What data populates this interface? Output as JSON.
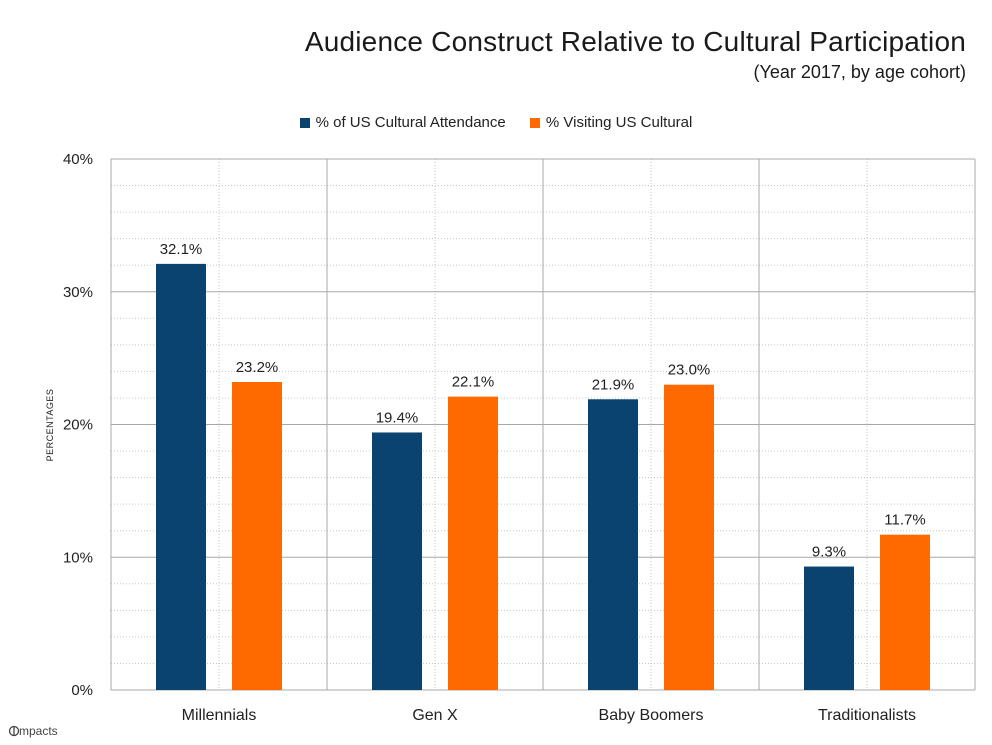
{
  "chart_data": {
    "type": "bar",
    "title": "Audience Construct Relative to Cultural Participation",
    "subtitle": "(Year 2017, by age cohort)",
    "ylabel": "PERCENTAGES",
    "xlabel": "",
    "categories": [
      "Millennials",
      "Gen X",
      "Baby Boomers",
      "Traditionalists"
    ],
    "series": [
      {
        "name": "% of US Cultural Attendance",
        "color": "#0a4270",
        "values": [
          32.1,
          19.4,
          21.9,
          9.3
        ]
      },
      {
        "name": "% Visiting US Cultural",
        "color": "#ff6a00",
        "values": [
          23.2,
          22.1,
          23.0,
          11.7
        ]
      }
    ],
    "ylim": [
      0,
      40
    ],
    "yticks": [
      0,
      10,
      20,
      30,
      40
    ],
    "ytick_labels": [
      "0%",
      "10%",
      "20%",
      "30%",
      "40%"
    ],
    "data_labels": [
      [
        "32.1%",
        "19.4%",
        "21.9%",
        "9.3%"
      ],
      [
        "23.2%",
        "22.1%",
        "23.0%",
        "11.7%"
      ]
    ],
    "legend_position": "top-center",
    "grid": true
  },
  "logo_text": "impacts"
}
